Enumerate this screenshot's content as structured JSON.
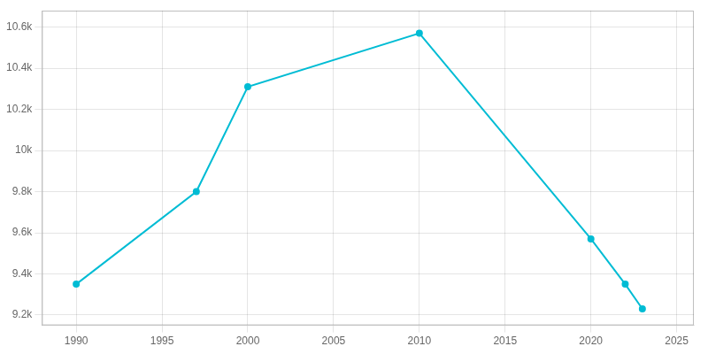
{
  "chart_data": {
    "type": "line",
    "x": [
      1990,
      1997,
      2000,
      2010,
      2020,
      2022,
      2023
    ],
    "values": [
      9350,
      9800,
      10310,
      10570,
      9570,
      9350,
      9230
    ],
    "color": "#00bcd4",
    "marker": "circle",
    "xlim": [
      1988,
      2026
    ],
    "xticks": [
      1990,
      1995,
      2000,
      2005,
      2010,
      2015,
      2020,
      2025
    ],
    "ylim": [
      9150,
      10680
    ],
    "yticks": [
      {
        "value": 9200,
        "label": "9.2k"
      },
      {
        "value": 9400,
        "label": "9.4k"
      },
      {
        "value": 9600,
        "label": "9.6k"
      },
      {
        "value": 9800,
        "label": "9.8k"
      },
      {
        "value": 10000,
        "label": "10k"
      },
      {
        "value": 10200,
        "label": "10.2k"
      },
      {
        "value": 10400,
        "label": "10.4k"
      },
      {
        "value": 10600,
        "label": "10.6k"
      }
    ],
    "grid": true
  }
}
